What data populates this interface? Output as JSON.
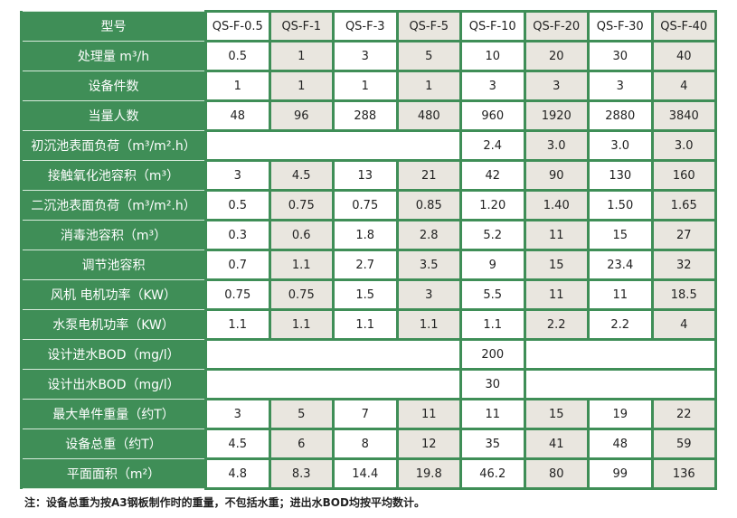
{
  "colors": {
    "header_green": "#3f8e57",
    "alt_column": "#e9e6df"
  },
  "header": {
    "label": "型号",
    "models": [
      "QS-F-0.5",
      "QS-F-1",
      "QS-F-3",
      "QS-F-5",
      "QS-F-10",
      "QS-F-20",
      "QS-F-30",
      "QS-F-40"
    ]
  },
  "rows": [
    {
      "label": "处理量 m³/h",
      "cells": [
        "0.5",
        "1",
        "3",
        "5",
        "10",
        "20",
        "30",
        "40"
      ]
    },
    {
      "label": "设备件数",
      "cells": [
        "1",
        "1",
        "1",
        "1",
        "3",
        "3",
        "3",
        "4"
      ]
    },
    {
      "label": "当量人数",
      "cells": [
        "48",
        "96",
        "288",
        "480",
        "960",
        "1920",
        "2880",
        "3840"
      ]
    },
    {
      "label": "初沉池表面负荷（m³/m².h）",
      "cells": [
        "",
        "",
        "",
        "",
        "2.4",
        "3.0",
        "3.0",
        "3.0"
      ]
    },
    {
      "label": "接触氧化池容积（m³）",
      "cells": [
        "3",
        "4.5",
        "13",
        "21",
        "42",
        "90",
        "130",
        "160"
      ]
    },
    {
      "label": "二沉池表面负荷（m³/m².h）",
      "cells": [
        "0.5",
        "0.75",
        "0.75",
        "0.85",
        "1.20",
        "1.40",
        "1.50",
        "1.65"
      ]
    },
    {
      "label": "消毒池容积（m³）",
      "cells": [
        "0.3",
        "0.6",
        "1.8",
        "2.8",
        "5.2",
        "11",
        "15",
        "27"
      ]
    },
    {
      "label": "调节池容积",
      "cells": [
        "0.7",
        "1.1",
        "2.7",
        "3.5",
        "9",
        "15",
        "23.4",
        "32"
      ]
    },
    {
      "label": "风机 电机功率（KW）",
      "cells": [
        "0.75",
        "0.75",
        "1.5",
        "3",
        "5.5",
        "11",
        "11",
        "18.5"
      ]
    },
    {
      "label": "水泵电机功率（KW）",
      "cells": [
        "1.1",
        "1.1",
        "1.1",
        "1.1",
        "1.1",
        "2.2",
        "2.2",
        "4"
      ]
    },
    {
      "label": "设计进水BOD（mg/l）",
      "cells": [
        "",
        "",
        "",
        "",
        "200",
        "",
        "",
        ""
      ]
    },
    {
      "label": "设计出水BOD（mg/l）",
      "cells": [
        "",
        "",
        "",
        "",
        "30",
        "",
        "",
        ""
      ]
    },
    {
      "label": "最大单件重量（约T）",
      "cells": [
        "3",
        "5",
        "7",
        "11",
        "11",
        "15",
        "19",
        "22"
      ]
    },
    {
      "label": "设备总重（约T）",
      "cells": [
        "4.5",
        "6",
        "8",
        "12",
        "35",
        "41",
        "48",
        "59"
      ]
    },
    {
      "label": "平面面积（m²）",
      "cells": [
        "4.8",
        "8.3",
        "14.4",
        "19.8",
        "46.2",
        "80",
        "99",
        "136"
      ]
    }
  ],
  "note": "注：设备总重为按A3钢板制作时的重量，不包括水重；进出水BOD均按平均数计。"
}
